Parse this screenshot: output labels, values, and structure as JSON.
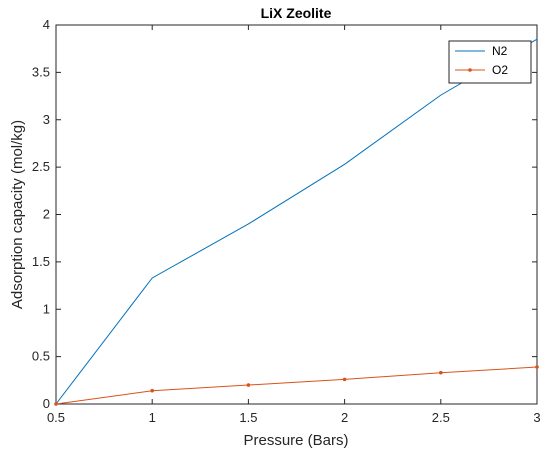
{
  "chart_data": {
    "type": "line",
    "title": "LiX Zeolite",
    "xlabel": "Pressure (Bars)",
    "ylabel": "Adsorption capacity (mol/kg)",
    "xlim": [
      0.5,
      3
    ],
    "ylim": [
      0,
      4
    ],
    "xticks": [
      "0.5",
      "1",
      "1.5",
      "2",
      "2.5",
      "3"
    ],
    "yticks": [
      "0",
      "0.5",
      "1",
      "1.5",
      "2",
      "2.5",
      "3",
      "3.5",
      "4"
    ],
    "grid": false,
    "legend_position": "top-right",
    "series": [
      {
        "name": "N2",
        "color": "#0072bd",
        "marker": "none",
        "x": [
          0.5,
          1,
          1.5,
          2,
          2.5,
          3
        ],
        "y": [
          0,
          1.33,
          1.9,
          2.53,
          3.26,
          3.85
        ]
      },
      {
        "name": "O2",
        "color": "#d95319",
        "marker": "dot",
        "x": [
          0.5,
          1,
          1.5,
          2,
          2.5,
          3
        ],
        "y": [
          0,
          0.14,
          0.2,
          0.26,
          0.33,
          0.39
        ]
      }
    ]
  }
}
